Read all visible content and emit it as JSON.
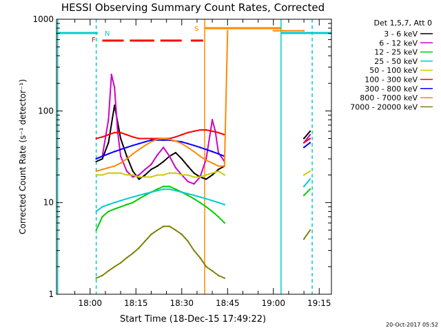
{
  "chart_data": {
    "type": "line",
    "title": "HESSI Observing Summary Count Rates, Corrected",
    "xlabel": "Start Time (18-Dec-15 17:49:22)",
    "ylabel": "Corrected Count Rate (s⁻¹ detector⁻¹)",
    "yscale": "log",
    "ylim": [
      1,
      1000
    ],
    "xlim_minutes": [
      -11,
      79
    ],
    "x_ticks": [
      "18:00",
      "18:15",
      "18:30",
      "18:45",
      "19:00",
      "19:15"
    ],
    "y_ticks": [
      "1",
      "10",
      "100",
      "1000"
    ],
    "legend_title": "Det 1,5,7, Att 0",
    "legend_position": "right",
    "footer_date": "20-Oct-2017 05:52",
    "markers": {
      "N": "N",
      "F": "F",
      "S": "S"
    },
    "series": [
      {
        "name": "3 - 6 keV",
        "color": "#000000",
        "x": [
          2,
          4,
          6,
          8,
          10,
          12,
          14,
          16,
          18,
          20,
          22,
          24,
          26,
          28,
          30,
          32,
          34,
          36,
          38,
          40,
          42,
          44,
          70,
          72
        ],
        "y": [
          28,
          30,
          45,
          115,
          50,
          32,
          22,
          18,
          20,
          23,
          25,
          28,
          32,
          35,
          30,
          25,
          21,
          19,
          18,
          20,
          23,
          25,
          50,
          60
        ]
      },
      {
        "name": "6 - 12 keV",
        "color": "#cc00cc",
        "x": [
          2,
          4,
          6,
          7,
          8,
          9,
          10,
          12,
          14,
          16,
          18,
          20,
          22,
          24,
          26,
          28,
          30,
          32,
          34,
          36,
          38,
          40,
          41,
          42,
          44,
          70,
          72
        ],
        "y": [
          30,
          32,
          80,
          250,
          180,
          60,
          32,
          22,
          19,
          20,
          23,
          26,
          33,
          40,
          32,
          24,
          20,
          17,
          16,
          19,
          30,
          80,
          60,
          35,
          28,
          45,
          55
        ]
      },
      {
        "name": "12 - 25 keV",
        "color": "#00cc00",
        "x": [
          2,
          4,
          6,
          8,
          10,
          12,
          14,
          16,
          18,
          20,
          22,
          24,
          26,
          28,
          30,
          32,
          34,
          36,
          38,
          40,
          42,
          44,
          70,
          72
        ],
        "y": [
          5,
          7,
          8,
          8.5,
          9,
          9.5,
          10,
          11,
          12,
          13,
          14,
          15,
          15,
          14,
          13,
          12,
          11,
          10,
          9,
          8,
          7,
          6,
          12,
          14
        ]
      },
      {
        "name": "25 - 50 keV",
        "color": "#00cccc",
        "x": [
          2,
          4,
          6,
          8,
          10,
          12,
          14,
          16,
          18,
          20,
          22,
          24,
          26,
          28,
          30,
          32,
          34,
          36,
          38,
          40,
          42,
          44,
          70,
          72
        ],
        "y": [
          8,
          9,
          9.5,
          10,
          10.5,
          11,
          11.5,
          12,
          12.5,
          13,
          13.5,
          14,
          14,
          13.5,
          13,
          12.5,
          12,
          11.5,
          11,
          10.5,
          10,
          9.5,
          15,
          18
        ]
      },
      {
        "name": "50 - 100 keV",
        "color": "#cccc00",
        "x": [
          2,
          4,
          6,
          8,
          10,
          12,
          14,
          16,
          18,
          20,
          22,
          24,
          26,
          28,
          30,
          32,
          34,
          36,
          38,
          40,
          42,
          44,
          70,
          72
        ],
        "y": [
          20,
          20,
          21,
          21,
          21,
          20,
          20,
          19,
          19,
          19,
          20,
          20,
          21,
          21,
          20,
          20,
          19,
          19,
          20,
          21,
          22,
          20,
          20,
          22
        ]
      },
      {
        "name": "100 - 300 keV",
        "color": "#ff0000",
        "x": [
          2,
          4,
          6,
          8,
          10,
          12,
          14,
          16,
          18,
          20,
          22,
          24,
          26,
          28,
          30,
          32,
          34,
          36,
          38,
          40,
          42,
          44,
          70,
          72
        ],
        "y": [
          50,
          52,
          55,
          58,
          58,
          55,
          52,
          50,
          50,
          50,
          50,
          50,
          50,
          52,
          55,
          58,
          60,
          62,
          62,
          60,
          58,
          55,
          45,
          50
        ]
      },
      {
        "name": "300 - 800 keV",
        "color": "#0000ff",
        "x": [
          2,
          4,
          6,
          8,
          10,
          12,
          14,
          16,
          18,
          20,
          22,
          24,
          26,
          28,
          30,
          32,
          34,
          36,
          38,
          40,
          42,
          44,
          70,
          72
        ],
        "y": [
          30,
          32,
          34,
          36,
          38,
          40,
          42,
          44,
          46,
          48,
          48,
          48,
          48,
          47,
          46,
          44,
          42,
          40,
          38,
          36,
          34,
          32,
          40,
          45
        ]
      },
      {
        "name": "800 - 7000 keV",
        "color": "#ff8800",
        "x": [
          2,
          4,
          6,
          8,
          10,
          12,
          14,
          16,
          18,
          20,
          22,
          24,
          26,
          28,
          30,
          32,
          34,
          36,
          38,
          40,
          42,
          44,
          45,
          60,
          70
        ],
        "y": [
          22,
          23,
          24,
          25,
          27,
          30,
          34,
          38,
          42,
          46,
          49,
          50,
          49,
          47,
          44,
          40,
          36,
          32,
          29,
          27,
          25,
          25,
          750,
          750,
          750
        ]
      },
      {
        "name": "7000 - 20000 keV",
        "color": "#808000",
        "x": [
          2,
          4,
          6,
          8,
          10,
          12,
          14,
          16,
          18,
          20,
          22,
          24,
          26,
          28,
          30,
          32,
          34,
          36,
          38,
          40,
          42,
          44,
          70,
          72
        ],
        "y": [
          1.5,
          1.6,
          1.8,
          2,
          2.2,
          2.5,
          2.8,
          3.2,
          3.8,
          4.5,
          5,
          5.5,
          5.5,
          5,
          4.5,
          3.8,
          3,
          2.5,
          2,
          1.8,
          1.6,
          1.5,
          4,
          5
        ]
      }
    ]
  }
}
